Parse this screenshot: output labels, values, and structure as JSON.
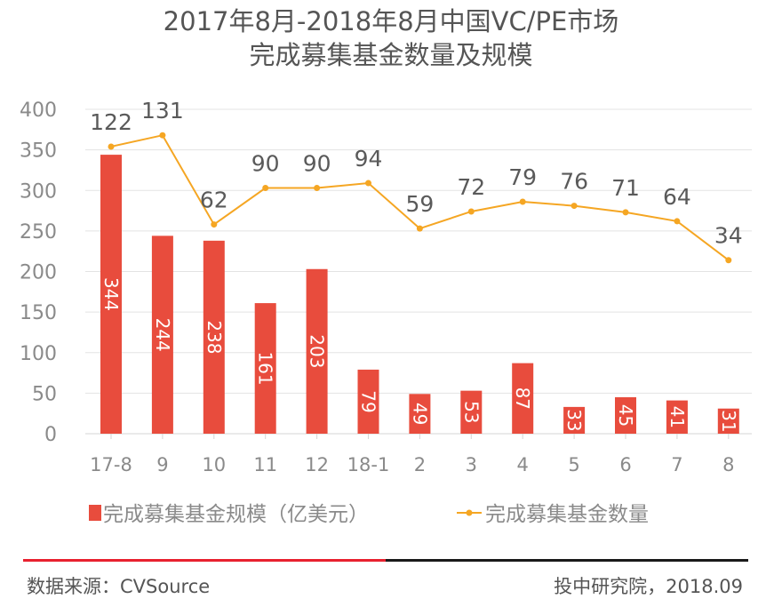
{
  "chart_data": {
    "type": "bar",
    "title": "2017年8月-2018年8月中国VC/PE市场",
    "subtitle": "完成募集基金数量及规模",
    "categories": [
      "17-8",
      "9",
      "10",
      "11",
      "12",
      "18-1",
      "2",
      "3",
      "4",
      "5",
      "6",
      "7",
      "8"
    ],
    "ylim": [
      0,
      400
    ],
    "yticks": [
      0,
      50,
      100,
      150,
      200,
      250,
      300,
      350,
      400
    ],
    "grid": true,
    "legend_position": "bottom",
    "series": [
      {
        "name": "完成募集基金规模（亿美元）",
        "type": "bar",
        "color": "#e84c3d",
        "values": [
          344,
          244,
          238,
          161,
          203,
          79,
          49,
          53,
          87,
          33,
          45,
          41,
          31
        ]
      },
      {
        "name": "完成募集基金数量",
        "type": "line",
        "color": "#f5a623",
        "values": [
          122,
          131,
          62,
          90,
          90,
          94,
          59,
          72,
          79,
          76,
          71,
          64,
          34
        ],
        "plot_heights": [
          354,
          368,
          258,
          303,
          303,
          309,
          253,
          274,
          286,
          281,
          273,
          262,
          214
        ]
      }
    ]
  },
  "footer": {
    "source": "数据来源：CVSource",
    "credit": "投中研究院，2018.09"
  }
}
